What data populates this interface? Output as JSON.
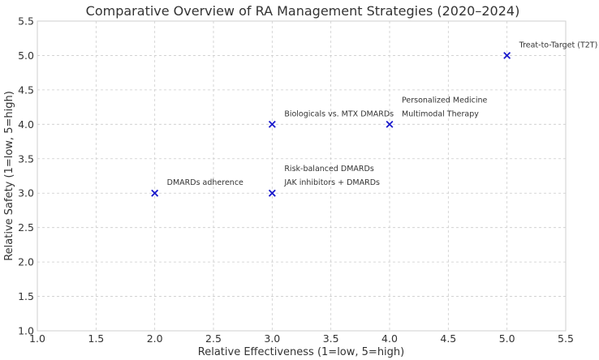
{
  "chart_data": {
    "type": "scatter",
    "title": "Comparative Overview of RA Management Strategies (2020–2024)",
    "xlabel": "Relative Effectiveness (1=low, 5=high)",
    "ylabel": "Relative Safety (1=low, 5=high)",
    "xlim": [
      1.0,
      5.5
    ],
    "ylim": [
      1.0,
      5.5
    ],
    "xticks": [
      "1.0",
      "1.5",
      "2.0",
      "2.5",
      "3.0",
      "3.5",
      "4.0",
      "4.5",
      "5.0",
      "5.5"
    ],
    "yticks": [
      "1.0",
      "1.5",
      "2.0",
      "2.5",
      "3.0",
      "3.5",
      "4.0",
      "4.5",
      "5.0",
      "5.5"
    ],
    "grid": true,
    "marker": "x",
    "marker_color": "#1a1acc",
    "points": [
      {
        "x": 2,
        "y": 3,
        "label": "DMARDs adherence"
      },
      {
        "x": 3,
        "y": 4,
        "label": "Biologicals vs. MTX DMARDs"
      },
      {
        "x": 3,
        "y": 3,
        "label": "JAK inhibitors + DMARDs"
      },
      {
        "x": 3,
        "y": 3,
        "label": "Risk-balanced DMARDs"
      },
      {
        "x": 4,
        "y": 4,
        "label": "Multimodal Therapy"
      },
      {
        "x": 4,
        "y": 4,
        "label": "Personalized Medicine"
      },
      {
        "x": 5,
        "y": 5,
        "label": "Treat-to-Target (T2T)"
      }
    ]
  }
}
